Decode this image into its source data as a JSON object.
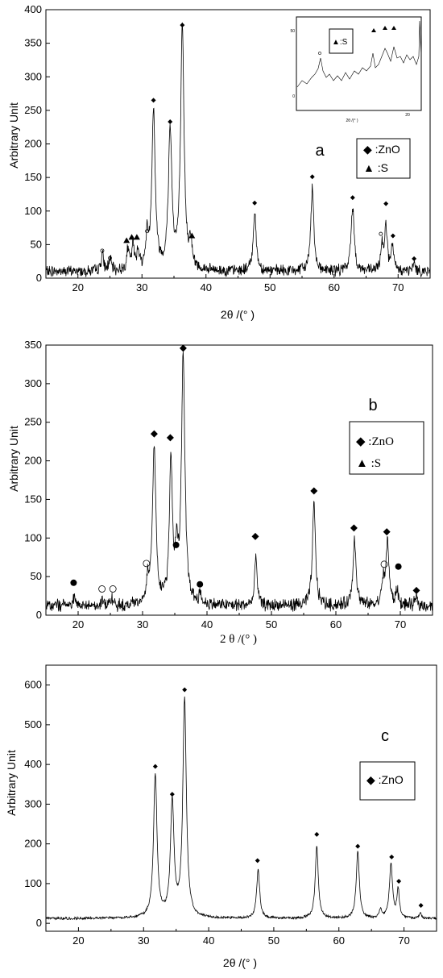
{
  "chart_data": [
    {
      "type": "line",
      "panel_label": "a",
      "xlabel": "2θ /(° )",
      "ylabel": "Arbitrary Unit",
      "xlim": [
        15,
        75
      ],
      "ylim": [
        0,
        400
      ],
      "xticks": [
        20,
        30,
        40,
        50,
        60,
        70
      ],
      "yticks": [
        0,
        50,
        100,
        150,
        200,
        250,
        300,
        350,
        400
      ],
      "legend": {
        "position": "right",
        "entries": [
          "◆ :ZnO",
          "▲ :S"
        ]
      },
      "baseline": 10,
      "peaks": [
        {
          "x": 23.8,
          "height": 25
        },
        {
          "x": 25.0,
          "height": 18
        },
        {
          "x": 27.8,
          "height": 30
        },
        {
          "x": 28.6,
          "height": 36
        },
        {
          "x": 29.4,
          "height": 30
        },
        {
          "x": 30.8,
          "height": 45
        },
        {
          "x": 31.8,
          "height": 238
        },
        {
          "x": 34.4,
          "height": 208
        },
        {
          "x": 36.3,
          "height": 358
        },
        {
          "x": 37.6,
          "height": 40
        },
        {
          "x": 47.6,
          "height": 88
        },
        {
          "x": 56.6,
          "height": 125
        },
        {
          "x": 62.9,
          "height": 98
        },
        {
          "x": 67.5,
          "height": 40
        },
        {
          "x": 68.1,
          "height": 70
        },
        {
          "x": 69.1,
          "height": 38
        },
        {
          "x": 72.5,
          "height": 12
        }
      ],
      "markers": [
        {
          "symbol": "diamond",
          "x": 31.8,
          "y": 265
        },
        {
          "symbol": "diamond",
          "x": 34.4,
          "y": 233
        },
        {
          "symbol": "diamond",
          "x": 36.3,
          "y": 377
        },
        {
          "symbol": "diamond",
          "x": 47.6,
          "y": 112
        },
        {
          "symbol": "diamond",
          "x": 56.6,
          "y": 151
        },
        {
          "symbol": "diamond",
          "x": 62.9,
          "y": 120
        },
        {
          "symbol": "diamond",
          "x": 68.1,
          "y": 111
        },
        {
          "symbol": "diamond",
          "x": 69.2,
          "y": 63
        },
        {
          "symbol": "diamond",
          "x": 72.5,
          "y": 29
        },
        {
          "symbol": "triangle",
          "x": 27.6,
          "y": 56
        },
        {
          "symbol": "triangle",
          "x": 28.4,
          "y": 61
        },
        {
          "symbol": "triangle",
          "x": 29.2,
          "y": 61
        },
        {
          "symbol": "triangle",
          "x": 37.8,
          "y": 63
        },
        {
          "symbol": "circle-open",
          "x": 23.8,
          "y": 41
        },
        {
          "symbol": "circle-open",
          "x": 25.0,
          "y": 30
        },
        {
          "symbol": "circle-open",
          "x": 30.8,
          "y": 70
        },
        {
          "symbol": "circle-open",
          "x": 67.3,
          "y": 66
        }
      ],
      "inset": {
        "legend_entries": [
          "▲:S"
        ],
        "ytick_labels": [
          "50",
          "0"
        ],
        "xtick_labels": [
          "20"
        ],
        "xlabel": "2θ /(° )"
      }
    },
    {
      "type": "line",
      "panel_label": "b",
      "xlabel": "2 θ /(° )",
      "ylabel": "Arbitrary Unit",
      "xlim": [
        15,
        75
      ],
      "ylim": [
        0,
        350
      ],
      "xticks": [
        20,
        30,
        40,
        50,
        60,
        70
      ],
      "yticks": [
        0,
        50,
        100,
        150,
        200,
        250,
        300,
        350
      ],
      "legend": {
        "position": "right",
        "entries": [
          "◆ :ZnO",
          "▲ :S"
        ]
      },
      "baseline": 12,
      "peaks": [
        {
          "x": 19.3,
          "height": 10
        },
        {
          "x": 23.8,
          "height": 8
        },
        {
          "x": 25.3,
          "height": 8
        },
        {
          "x": 30.8,
          "height": 30
        },
        {
          "x": 31.8,
          "height": 205
        },
        {
          "x": 34.4,
          "height": 188
        },
        {
          "x": 35.3,
          "height": 60
        },
        {
          "x": 36.3,
          "height": 318
        },
        {
          "x": 38.9,
          "height": 12
        },
        {
          "x": 47.6,
          "height": 65
        },
        {
          "x": 56.6,
          "height": 132
        },
        {
          "x": 62.9,
          "height": 88
        },
        {
          "x": 67.3,
          "height": 30
        },
        {
          "x": 68.0,
          "height": 85
        },
        {
          "x": 69.5,
          "height": 20
        },
        {
          "x": 72.5,
          "height": 10
        }
      ],
      "markers": [
        {
          "symbol": "diamond",
          "x": 31.8,
          "y": 235
        },
        {
          "symbol": "diamond",
          "x": 34.3,
          "y": 230
        },
        {
          "symbol": "diamond",
          "x": 36.3,
          "y": 346
        },
        {
          "symbol": "diamond",
          "x": 47.5,
          "y": 102
        },
        {
          "symbol": "diamond",
          "x": 56.6,
          "y": 161
        },
        {
          "symbol": "diamond",
          "x": 62.8,
          "y": 113
        },
        {
          "symbol": "diamond",
          "x": 67.9,
          "y": 108
        },
        {
          "symbol": "diamond",
          "x": 72.5,
          "y": 32
        },
        {
          "symbol": "circle",
          "x": 19.3,
          "y": 42
        },
        {
          "symbol": "circle",
          "x": 35.2,
          "y": 91
        },
        {
          "symbol": "circle",
          "x": 38.9,
          "y": 40
        },
        {
          "symbol": "circle",
          "x": 69.7,
          "y": 63
        },
        {
          "symbol": "circle-open",
          "x": 23.7,
          "y": 34
        },
        {
          "symbol": "circle-open",
          "x": 25.4,
          "y": 34
        },
        {
          "symbol": "circle-open",
          "x": 30.6,
          "y": 67
        },
        {
          "symbol": "circle-open",
          "x": 67.5,
          "y": 66
        }
      ]
    },
    {
      "type": "line",
      "panel_label": "c",
      "xlabel": "2θ /(° )",
      "ylabel": "Arbitrary Unit",
      "xlim": [
        15,
        75
      ],
      "ylim": [
        -20,
        650
      ],
      "xticks": [
        20,
        30,
        40,
        50,
        60,
        70
      ],
      "yticks": [
        0,
        100,
        200,
        300,
        400,
        500,
        600
      ],
      "legend": {
        "position": "right",
        "entries": [
          "◆ :ZnO"
        ]
      },
      "baseline": 12,
      "peaks": [
        {
          "x": 31.8,
          "height": 360
        },
        {
          "x": 34.4,
          "height": 290
        },
        {
          "x": 36.3,
          "height": 550
        },
        {
          "x": 47.6,
          "height": 122
        },
        {
          "x": 56.6,
          "height": 182
        },
        {
          "x": 62.9,
          "height": 168
        },
        {
          "x": 66.4,
          "height": 22
        },
        {
          "x": 68.0,
          "height": 138
        },
        {
          "x": 69.1,
          "height": 72
        },
        {
          "x": 72.5,
          "height": 12
        }
      ],
      "markers": [
        {
          "symbol": "diamond",
          "x": 31.8,
          "y": 395
        },
        {
          "symbol": "diamond",
          "x": 34.4,
          "y": 325
        },
        {
          "symbol": "diamond",
          "x": 36.3,
          "y": 588
        },
        {
          "symbol": "diamond",
          "x": 47.5,
          "y": 158
        },
        {
          "symbol": "diamond",
          "x": 56.6,
          "y": 224
        },
        {
          "symbol": "diamond",
          "x": 62.9,
          "y": 194
        },
        {
          "symbol": "diamond",
          "x": 68.1,
          "y": 167
        },
        {
          "symbol": "diamond",
          "x": 69.2,
          "y": 106
        },
        {
          "symbol": "diamond",
          "x": 72.6,
          "y": 45
        }
      ]
    }
  ]
}
